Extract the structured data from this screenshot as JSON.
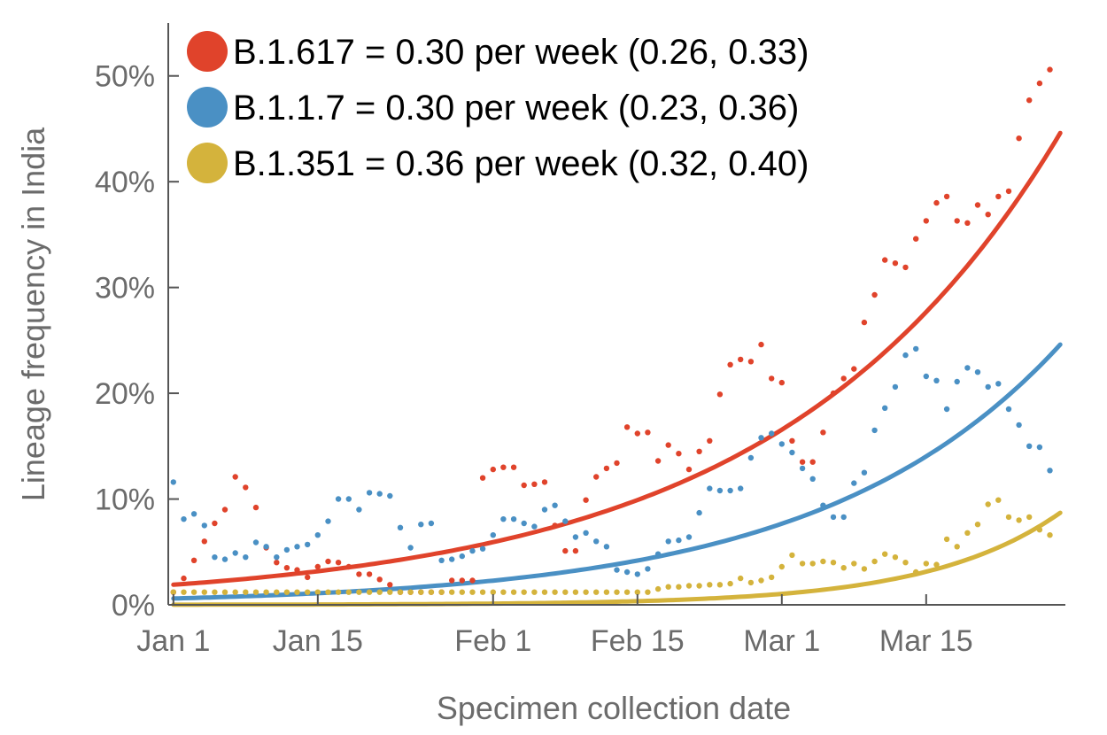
{
  "chart_data": {
    "type": "scatter",
    "title": "",
    "xlabel": "Specimen collection date",
    "ylabel": "Lineage frequency in India",
    "x_ticks": [
      {
        "day": 1,
        "label": "Jan 1"
      },
      {
        "day": 15,
        "label": "Jan 15"
      },
      {
        "day": 32,
        "label": "Feb 1"
      },
      {
        "day": 46,
        "label": "Feb 15"
      },
      {
        "day": 60,
        "label": "Mar 1"
      },
      {
        "day": 74,
        "label": "Mar 15"
      }
    ],
    "y_ticks": [
      {
        "value": 0,
        "label": "0%"
      },
      {
        "value": 10,
        "label": "10%"
      },
      {
        "value": 20,
        "label": "20%"
      },
      {
        "value": 30,
        "label": "30%"
      },
      {
        "value": 40,
        "label": "40%"
      },
      {
        "value": 50,
        "label": "50%"
      }
    ],
    "xlim": [
      0.5,
      87.5
    ],
    "ylim": [
      0,
      55
    ],
    "grid": false,
    "legend_position": "top-left",
    "series": [
      {
        "name": "B.1.617 = 0.30 per week (0.26, 0.33)",
        "color": "#e0432b",
        "fit": {
          "start_day": 1,
          "end_day": 87,
          "start_value": 1.9,
          "end_value": 44.6
        },
        "points": [
          [
            1,
            1.2
          ],
          [
            2,
            2.5
          ],
          [
            3,
            4.2
          ],
          [
            4,
            6.0
          ],
          [
            5,
            7.7
          ],
          [
            6,
            9.0
          ],
          [
            7,
            12.1
          ],
          [
            8,
            11.1
          ],
          [
            9,
            9.2
          ],
          [
            10,
            5.4
          ],
          [
            11,
            4.0
          ],
          [
            12,
            3.5
          ],
          [
            13,
            3.3
          ],
          [
            14,
            2.6
          ],
          [
            15,
            3.6
          ],
          [
            16,
            4.1
          ],
          [
            17,
            4.0
          ],
          [
            18,
            3.6
          ],
          [
            19,
            2.9
          ],
          [
            20,
            2.9
          ],
          [
            21,
            2.4
          ],
          [
            22,
            1.9
          ],
          [
            23,
            1.2
          ],
          [
            24,
            1.2
          ],
          [
            25,
            1.2
          ],
          [
            26,
            1.2
          ],
          [
            27,
            1.2
          ],
          [
            28,
            2.3
          ],
          [
            29,
            2.3
          ],
          [
            30,
            2.3
          ],
          [
            31,
            12.0
          ],
          [
            32,
            12.8
          ],
          [
            33,
            13.0
          ],
          [
            34,
            13.0
          ],
          [
            35,
            11.3
          ],
          [
            36,
            11.4
          ],
          [
            37,
            11.6
          ],
          [
            38,
            7.5
          ],
          [
            39,
            5.1
          ],
          [
            40,
            5.1
          ],
          [
            41,
            9.9
          ],
          [
            42,
            12.1
          ],
          [
            43,
            12.9
          ],
          [
            44,
            13.4
          ],
          [
            45,
            16.8
          ],
          [
            46,
            16.2
          ],
          [
            47,
            16.3
          ],
          [
            48,
            13.6
          ],
          [
            49,
            15.1
          ],
          [
            50,
            14.3
          ],
          [
            51,
            12.8
          ],
          [
            52,
            14.5
          ],
          [
            53,
            15.5
          ],
          [
            54,
            19.9
          ],
          [
            55,
            22.7
          ],
          [
            56,
            23.2
          ],
          [
            57,
            23.0
          ],
          [
            58,
            24.6
          ],
          [
            59,
            21.4
          ],
          [
            60,
            21.0
          ],
          [
            61,
            15.5
          ],
          [
            62,
            13.5
          ],
          [
            63,
            13.5
          ],
          [
            64,
            16.3
          ],
          [
            65,
            20.0
          ],
          [
            66,
            21.4
          ],
          [
            67,
            22.3
          ],
          [
            68,
            26.7
          ],
          [
            69,
            29.3
          ],
          [
            70,
            32.6
          ],
          [
            71,
            32.3
          ],
          [
            72,
            31.9
          ],
          [
            73,
            34.6
          ],
          [
            74,
            36.3
          ],
          [
            75,
            38.0
          ],
          [
            76,
            38.6
          ],
          [
            77,
            36.3
          ],
          [
            78,
            36.1
          ],
          [
            79,
            37.8
          ],
          [
            80,
            36.9
          ],
          [
            81,
            38.6
          ],
          [
            82,
            39.1
          ],
          [
            83,
            44.1
          ],
          [
            84,
            47.7
          ],
          [
            85,
            49.3
          ],
          [
            86,
            50.6
          ]
        ]
      },
      {
        "name": "B.1.1.7 = 0.30 per week (0.23, 0.36)",
        "color": "#4a90c4",
        "fit": {
          "start_day": 1,
          "end_day": 87,
          "start_value": 0.6,
          "end_value": 24.6
        },
        "points": [
          [
            1,
            11.6
          ],
          [
            2,
            8.1
          ],
          [
            3,
            8.6
          ],
          [
            4,
            7.5
          ],
          [
            5,
            4.5
          ],
          [
            6,
            4.3
          ],
          [
            7,
            4.9
          ],
          [
            8,
            4.5
          ],
          [
            9,
            5.9
          ],
          [
            10,
            5.5
          ],
          [
            11,
            4.5
          ],
          [
            12,
            5.2
          ],
          [
            13,
            5.5
          ],
          [
            14,
            5.7
          ],
          [
            15,
            6.6
          ],
          [
            16,
            7.9
          ],
          [
            17,
            10.0
          ],
          [
            18,
            10.0
          ],
          [
            19,
            9.0
          ],
          [
            20,
            10.6
          ],
          [
            21,
            10.5
          ],
          [
            22,
            10.3
          ],
          [
            23,
            7.3
          ],
          [
            24,
            5.4
          ],
          [
            25,
            7.6
          ],
          [
            26,
            7.7
          ],
          [
            27,
            4.2
          ],
          [
            28,
            4.3
          ],
          [
            29,
            4.6
          ],
          [
            30,
            5.1
          ],
          [
            31,
            5.3
          ],
          [
            32,
            6.6
          ],
          [
            33,
            8.1
          ],
          [
            34,
            8.1
          ],
          [
            35,
            7.7
          ],
          [
            36,
            7.4
          ],
          [
            37,
            9.0
          ],
          [
            38,
            9.4
          ],
          [
            39,
            7.9
          ],
          [
            40,
            6.4
          ],
          [
            41,
            6.8
          ],
          [
            42,
            6.0
          ],
          [
            43,
            5.5
          ],
          [
            44,
            3.3
          ],
          [
            45,
            3.1
          ],
          [
            46,
            2.9
          ],
          [
            47,
            3.4
          ],
          [
            48,
            4.8
          ],
          [
            49,
            6.0
          ],
          [
            50,
            6.1
          ],
          [
            51,
            6.4
          ],
          [
            52,
            8.7
          ],
          [
            53,
            11.0
          ],
          [
            54,
            10.8
          ],
          [
            55,
            10.8
          ],
          [
            56,
            11.0
          ],
          [
            57,
            13.9
          ],
          [
            58,
            15.8
          ],
          [
            59,
            16.2
          ],
          [
            60,
            15.2
          ],
          [
            61,
            14.4
          ],
          [
            62,
            12.9
          ],
          [
            63,
            11.9
          ],
          [
            64,
            9.4
          ],
          [
            65,
            8.3
          ],
          [
            66,
            8.3
          ],
          [
            67,
            11.5
          ],
          [
            68,
            12.5
          ],
          [
            69,
            16.5
          ],
          [
            70,
            18.6
          ],
          [
            71,
            20.6
          ],
          [
            72,
            23.6
          ],
          [
            73,
            24.2
          ],
          [
            74,
            21.6
          ],
          [
            75,
            21.2
          ],
          [
            76,
            18.5
          ],
          [
            77,
            21.1
          ],
          [
            78,
            22.4
          ],
          [
            79,
            22.0
          ],
          [
            80,
            20.6
          ],
          [
            81,
            20.9
          ],
          [
            82,
            18.5
          ],
          [
            83,
            17.0
          ],
          [
            84,
            15.0
          ],
          [
            85,
            14.9
          ],
          [
            86,
            12.7
          ]
        ]
      },
      {
        "name": "B.1.351 = 0.36 per week (0.32, 0.40)",
        "color": "#d4b33c",
        "fit": {
          "start_day": 1,
          "end_day": 87,
          "start_value": 0.01,
          "end_value": 8.7
        },
        "points": [
          [
            1,
            1.2
          ],
          [
            2,
            1.2
          ],
          [
            3,
            1.2
          ],
          [
            4,
            1.2
          ],
          [
            5,
            1.2
          ],
          [
            6,
            1.2
          ],
          [
            7,
            1.2
          ],
          [
            8,
            1.2
          ],
          [
            9,
            1.2
          ],
          [
            10,
            1.2
          ],
          [
            11,
            1.2
          ],
          [
            12,
            1.2
          ],
          [
            13,
            1.2
          ],
          [
            14,
            1.2
          ],
          [
            15,
            1.2
          ],
          [
            16,
            1.2
          ],
          [
            17,
            1.2
          ],
          [
            18,
            1.2
          ],
          [
            19,
            1.2
          ],
          [
            20,
            1.2
          ],
          [
            21,
            1.2
          ],
          [
            22,
            1.2
          ],
          [
            23,
            1.2
          ],
          [
            24,
            1.2
          ],
          [
            25,
            1.2
          ],
          [
            26,
            1.2
          ],
          [
            27,
            1.2
          ],
          [
            28,
            1.2
          ],
          [
            29,
            1.2
          ],
          [
            30,
            1.2
          ],
          [
            31,
            1.2
          ],
          [
            32,
            1.2
          ],
          [
            33,
            1.2
          ],
          [
            34,
            1.2
          ],
          [
            35,
            1.2
          ],
          [
            36,
            1.2
          ],
          [
            37,
            1.2
          ],
          [
            38,
            1.2
          ],
          [
            39,
            1.2
          ],
          [
            40,
            1.2
          ],
          [
            41,
            1.2
          ],
          [
            42,
            1.2
          ],
          [
            43,
            1.2
          ],
          [
            44,
            1.2
          ],
          [
            45,
            1.2
          ],
          [
            46,
            1.2
          ],
          [
            47,
            1.2
          ],
          [
            48,
            1.5
          ],
          [
            49,
            1.7
          ],
          [
            50,
            1.7
          ],
          [
            51,
            1.8
          ],
          [
            52,
            1.8
          ],
          [
            53,
            1.9
          ],
          [
            54,
            1.9
          ],
          [
            55,
            2.0
          ],
          [
            56,
            2.5
          ],
          [
            57,
            2.1
          ],
          [
            58,
            2.3
          ],
          [
            59,
            2.6
          ],
          [
            60,
            3.6
          ],
          [
            61,
            4.7
          ],
          [
            62,
            3.9
          ],
          [
            63,
            3.9
          ],
          [
            64,
            4.1
          ],
          [
            65,
            4.0
          ],
          [
            66,
            3.5
          ],
          [
            67,
            3.9
          ],
          [
            68,
            3.4
          ],
          [
            69,
            4.1
          ],
          [
            70,
            4.8
          ],
          [
            71,
            4.5
          ],
          [
            72,
            4.0
          ],
          [
            73,
            3.1
          ],
          [
            74,
            3.9
          ],
          [
            75,
            3.8
          ],
          [
            76,
            6.2
          ],
          [
            77,
            5.5
          ],
          [
            78,
            6.8
          ],
          [
            79,
            7.6
          ],
          [
            80,
            9.5
          ],
          [
            81,
            9.9
          ],
          [
            82,
            8.3
          ],
          [
            83,
            8.0
          ],
          [
            84,
            8.3
          ],
          [
            85,
            7.1
          ],
          [
            86,
            6.6
          ]
        ]
      }
    ]
  }
}
